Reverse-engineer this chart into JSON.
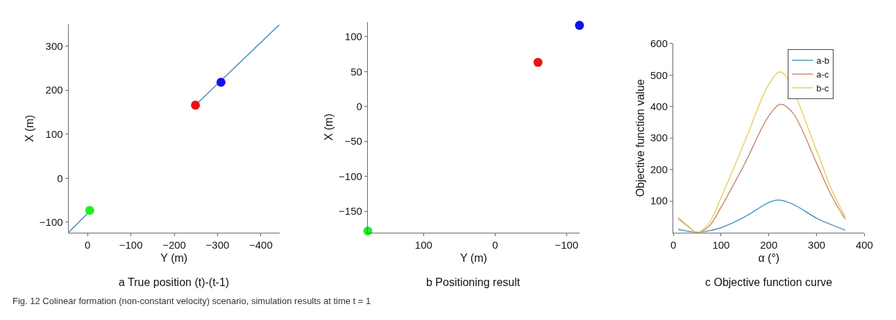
{
  "chart_data": [
    {
      "type": "scatter",
      "title": "a True position (t)-(t-1)",
      "xlabel": "Y (m)",
      "ylabel": "X (m)",
      "xlim": [
        44,
        -443
      ],
      "ylim": [
        -123,
        349
      ],
      "xticks": [
        0,
        -100,
        -200,
        -300,
        -400
      ],
      "yticks": [
        -100,
        0,
        100,
        200,
        300
      ],
      "legend": false,
      "series": [
        {
          "type": "line",
          "color": "#4a8ab8",
          "x": [
            44,
            -5,
            null,
            -249,
            -443
          ],
          "values": [
            -123,
            -75,
            null,
            166,
            349
          ]
        },
        {
          "type": "scatter",
          "marker": "circle",
          "x": [
            -5,
            -249,
            -308
          ],
          "values": [
            -73,
            166,
            218
          ],
          "colors": [
            "#22ee22",
            "#ee1111",
            "#1111ee"
          ]
        }
      ],
      "annotations": [
        "Fig. 12 Colinear formation (non-constant velocity) scenario, simulation results at time t = 1"
      ]
    },
    {
      "type": "scatter",
      "title": "b Positioning result",
      "xlabel": "Y (m)",
      "ylabel": "X (m)",
      "xlim": [
        178,
        -118
      ],
      "ylim": [
        -180,
        121
      ],
      "xticks": [
        100,
        0,
        -100
      ],
      "yticks": [
        -150,
        -100,
        -50,
        0,
        50,
        100
      ],
      "legend": false,
      "series": [
        {
          "type": "scatter",
          "marker": "circle",
          "x": [
            178,
            -60,
            -118
          ],
          "values": [
            -178,
            63,
            116
          ],
          "colors": [
            "#22ee22",
            "#ee1111",
            "#1111ee"
          ]
        }
      ]
    },
    {
      "type": "line",
      "title": "c Objective function curve",
      "xlabel": "α (°)",
      "ylabel": "Objective function value",
      "xlim": [
        0,
        400
      ],
      "ylim": [
        0,
        600
      ],
      "xticks": [
        0,
        100,
        200,
        300,
        400
      ],
      "yticks": [
        100,
        200,
        300,
        400,
        500,
        600
      ],
      "legend": "top right",
      "series": [
        {
          "name": "a-b",
          "color": "#4a95c4",
          "x": [
            10,
            30,
            50,
            75,
            100,
            150,
            200,
            220,
            250,
            300,
            330,
            360
          ],
          "values": [
            10,
            4,
            0,
            5,
            15,
            50,
            95,
            103,
            90,
            45,
            25,
            7
          ]
        },
        {
          "name": "a-c",
          "color": "#c98a70",
          "x": [
            10,
            30,
            50,
            75,
            100,
            150,
            200,
            225,
            250,
            300,
            330,
            360
          ],
          "values": [
            45,
            20,
            0,
            20,
            80,
            220,
            370,
            407,
            380,
            220,
            120,
            42
          ]
        },
        {
          "name": "b-c",
          "color": "#e6d260",
          "x": [
            10,
            30,
            50,
            75,
            100,
            150,
            200,
            225,
            250,
            300,
            330,
            360
          ],
          "values": [
            48,
            22,
            0,
            30,
            110,
            290,
            470,
            510,
            null,
            260,
            140,
            50
          ]
        }
      ]
    }
  ]
}
